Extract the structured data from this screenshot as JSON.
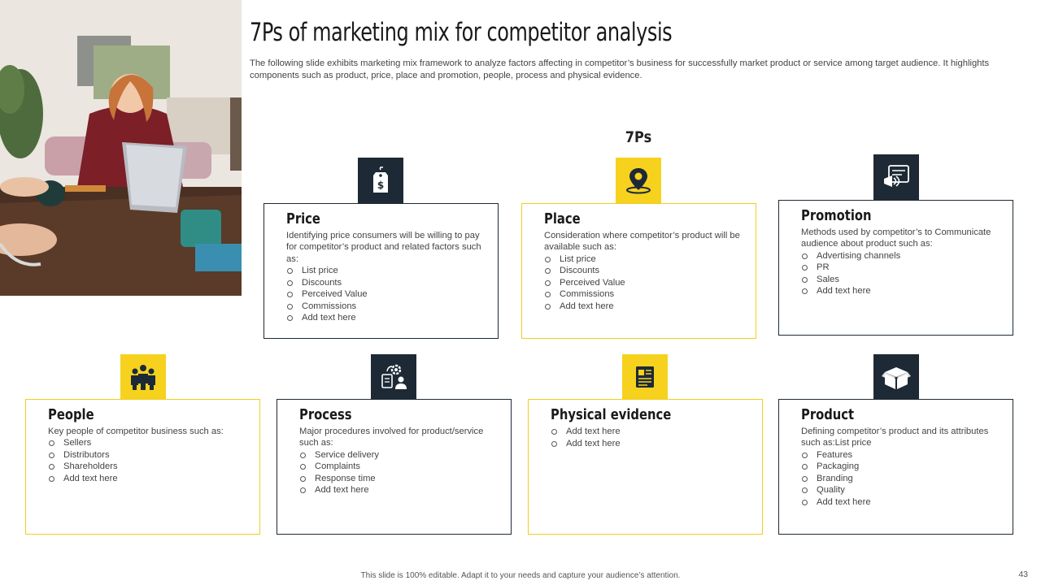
{
  "title": "7Ps of marketing mix for competitor analysis",
  "subtitle": "The following slide exhibits marketing mix framework to analyze factors affecting in competitor’s business for successfully market product or service among target audience. It highlights components such as product, price, place and promotion, people, process and physical evidence.",
  "section_heading": "7Ps",
  "cards": {
    "price": {
      "title": "Price",
      "desc": "Identifying price consumers will be willing to pay for competitor’s product and related factors such as:",
      "items": [
        "List price",
        "Discounts",
        "Perceived Value",
        "Commissions",
        "Add text here"
      ],
      "icon": "price-tag-icon"
    },
    "place": {
      "title": "Place",
      "desc": "Consideration where competitor’s product will be available such as:",
      "items": [
        "List price",
        "Discounts",
        "Perceived Value",
        "Commissions",
        "Add text here"
      ],
      "icon": "location-pin-icon"
    },
    "promotion": {
      "title": "Promotion",
      "desc": "Methods used by competitor’s to Communicate audience about product such as:",
      "items": [
        "Advertising channels",
        "PR",
        "Sales",
        "Add text here"
      ],
      "icon": "megaphone-icon"
    },
    "people": {
      "title": "People",
      "desc": "Key people of competitor business such as:",
      "items": [
        "Sellers",
        "Distributors",
        "Shareholders",
        "Add text here"
      ],
      "icon": "group-people-icon"
    },
    "process": {
      "title": "Process",
      "desc": "Major procedures involved for product/service such as:",
      "items": [
        "Service delivery",
        "Complaints",
        "Response time",
        "Add text here"
      ],
      "icon": "process-gear-icon"
    },
    "physical": {
      "title": "Physical evidence",
      "items": [
        "Add text here",
        "Add text here"
      ],
      "icon": "document-id-icon"
    },
    "product": {
      "title": "Product",
      "desc": "Defining competitor’s product and its attributes such as:List price",
      "items": [
        "Features",
        "Packaging",
        "Branding",
        "Quality",
        "Add text here"
      ],
      "icon": "open-box-icon"
    }
  },
  "footer": "This slide is 100% editable. Adapt it to your needs and capture your audience’s attention.",
  "page_number": "43",
  "colors": {
    "dark": "#1d2a36",
    "yellow": "#f6d21f",
    "yellow_border": "#f2cc1f"
  }
}
